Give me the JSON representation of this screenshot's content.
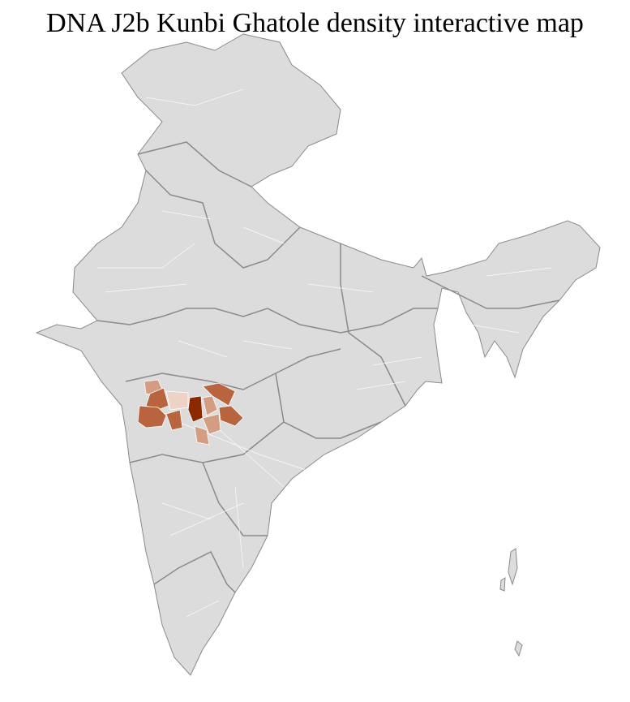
{
  "title": "DNA J2b Kunbi Ghatole density interactive map",
  "map": {
    "base_fill": "#dcdcdc",
    "district_border": "#ffffff",
    "state_border": "#8a8a8a",
    "highlighted_districts": [
      {
        "level": "very-high",
        "color": "#8b2a00"
      },
      {
        "level": "high",
        "color": "#b8653f"
      },
      {
        "level": "medium",
        "color": "#d49c82"
      },
      {
        "level": "low",
        "color": "#ecd3c5"
      }
    ]
  }
}
